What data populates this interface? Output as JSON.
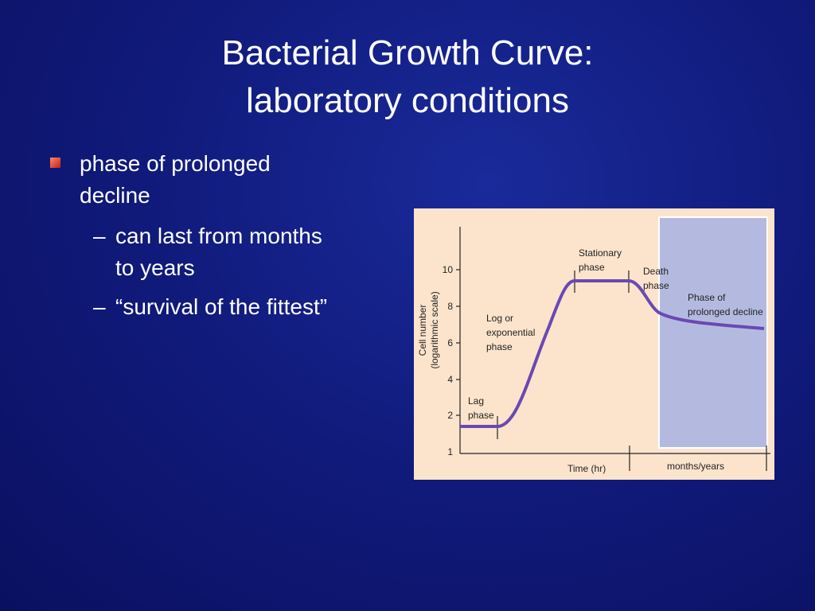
{
  "title": {
    "lines": [
      "Bacterial Growth Curve:",
      "laboratory conditions"
    ]
  },
  "bullets": [
    {
      "text": [
        "phase of prolonged",
        "decline"
      ],
      "subbullets": [
        {
          "text": [
            "can last from months",
            "to years"
          ]
        },
        {
          "text": [
            "“survival of the fittest”"
          ]
        }
      ]
    }
  ],
  "figure": {
    "y_axis_label": [
      "Cell number",
      "(logarithmic scale)"
    ],
    "y_tick_labels": [
      "10",
      "8",
      "6",
      "4",
      "2",
      "1"
    ],
    "x_axis_labels": [
      "Time (hr)",
      "months/years"
    ],
    "phases": [
      {
        "label": [
          "Lag",
          "phase"
        ]
      },
      {
        "label": [
          "Log or",
          "exponential",
          "phase"
        ]
      },
      {
        "label": [
          "Stationary",
          "phase"
        ]
      },
      {
        "label": [
          "Death",
          "phase"
        ]
      },
      {
        "label": [
          "Phase of",
          "prolonged decline"
        ]
      }
    ]
  }
}
